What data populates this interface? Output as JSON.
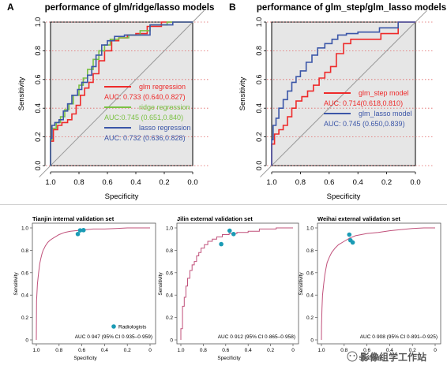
{
  "chart_data": [
    {
      "type": "line",
      "panel_letter": "A",
      "title": "performance of glm/ridge/lasso models",
      "xlabel": "Specificity",
      "ylabel": "Sensitivity",
      "xlim": [
        1.0,
        0.0
      ],
      "ylim": [
        0.0,
        1.0
      ],
      "x_reversed": true,
      "xticks": [
        "1.0",
        "0.8",
        "0.6",
        "0.4",
        "0.2",
        "0.0"
      ],
      "yticks": [
        "0.0",
        "0.2",
        "0.4",
        "0.6",
        "0.8",
        "1.0"
      ],
      "background": "#e6e6e6",
      "grid": "dotted red horizontal at y ticks",
      "legend_position": "inside-right",
      "series": [
        {
          "name": "glm regression",
          "auc_text": "AUC: 0.733 (0.640,0.827)",
          "color": "#ee2a2a",
          "x": [
            1.0,
            1.0,
            0.98,
            0.98,
            0.95,
            0.95,
            0.92,
            0.92,
            0.88,
            0.88,
            0.85,
            0.85,
            0.82,
            0.82,
            0.79,
            0.79,
            0.76,
            0.76,
            0.73,
            0.73,
            0.7,
            0.7,
            0.66,
            0.66,
            0.62,
            0.62,
            0.57,
            0.57,
            0.52,
            0.52,
            0.46,
            0.46,
            0.4,
            0.4,
            0.32,
            0.32,
            0.22,
            0.22,
            0.0
          ],
          "y": [
            0.0,
            0.17,
            0.17,
            0.25,
            0.25,
            0.28,
            0.28,
            0.3,
            0.3,
            0.32,
            0.32,
            0.36,
            0.36,
            0.42,
            0.42,
            0.49,
            0.49,
            0.54,
            0.54,
            0.58,
            0.58,
            0.64,
            0.64,
            0.73,
            0.73,
            0.8,
            0.8,
            0.87,
            0.87,
            0.89,
            0.89,
            0.91,
            0.91,
            0.92,
            0.92,
            0.97,
            0.97,
            1.0,
            1.0
          ]
        },
        {
          "name": "ridge regression",
          "auc_text": "AUC:0.745 (0.651,0.840)",
          "color": "#7ac143",
          "x": [
            1.0,
            1.0,
            0.99,
            0.99,
            0.96,
            0.96,
            0.93,
            0.93,
            0.9,
            0.9,
            0.87,
            0.87,
            0.84,
            0.84,
            0.8,
            0.8,
            0.77,
            0.77,
            0.74,
            0.74,
            0.7,
            0.7,
            0.66,
            0.66,
            0.62,
            0.62,
            0.58,
            0.58,
            0.52,
            0.52,
            0.45,
            0.45,
            0.37,
            0.37,
            0.3,
            0.3,
            0.18,
            0.18,
            0.0
          ],
          "y": [
            0.0,
            0.18,
            0.18,
            0.26,
            0.26,
            0.3,
            0.3,
            0.34,
            0.34,
            0.39,
            0.39,
            0.43,
            0.43,
            0.49,
            0.49,
            0.56,
            0.56,
            0.61,
            0.61,
            0.67,
            0.67,
            0.74,
            0.74,
            0.8,
            0.8,
            0.84,
            0.84,
            0.88,
            0.88,
            0.89,
            0.89,
            0.91,
            0.91,
            0.94,
            0.94,
            0.98,
            0.98,
            1.0,
            1.0
          ]
        },
        {
          "name": "lasso regression",
          "auc_text": "AUC: 0.732 (0.636,0.828)",
          "color": "#3b56a8",
          "x": [
            1.0,
            1.0,
            0.99,
            0.99,
            0.97,
            0.97,
            0.94,
            0.94,
            0.91,
            0.91,
            0.88,
            0.88,
            0.85,
            0.85,
            0.81,
            0.81,
            0.78,
            0.78,
            0.74,
            0.74,
            0.71,
            0.71,
            0.68,
            0.68,
            0.64,
            0.64,
            0.6,
            0.6,
            0.55,
            0.55,
            0.48,
            0.48,
            0.4,
            0.4,
            0.3,
            0.3,
            0.14,
            0.14,
            0.0
          ],
          "y": [
            0.0,
            0.19,
            0.19,
            0.28,
            0.28,
            0.3,
            0.3,
            0.32,
            0.32,
            0.38,
            0.38,
            0.43,
            0.43,
            0.49,
            0.49,
            0.53,
            0.53,
            0.58,
            0.58,
            0.63,
            0.63,
            0.69,
            0.69,
            0.77,
            0.77,
            0.84,
            0.84,
            0.87,
            0.87,
            0.9,
            0.9,
            0.91,
            0.91,
            0.91,
            0.91,
            0.98,
            0.98,
            1.0,
            1.0
          ]
        }
      ]
    },
    {
      "type": "line",
      "panel_letter": "B",
      "title": "performance of glm_step/glm_lasso models",
      "xlabel": "Specificity",
      "ylabel": "Sensitivity",
      "xlim": [
        1.0,
        0.0
      ],
      "ylim": [
        0.0,
        1.0
      ],
      "x_reversed": true,
      "xticks": [
        "1.0",
        "0.8",
        "0.6",
        "0.4",
        "0.2",
        "0.0"
      ],
      "yticks": [
        "0.0",
        "0.2",
        "0.4",
        "0.6",
        "0.8",
        "1.0"
      ],
      "background": "#e6e6e6",
      "grid": "dotted red horizontal at y ticks",
      "legend_position": "inside-right",
      "series": [
        {
          "name": "glm_step model",
          "auc_text": "AUC: 0.714(0.618,0.810)",
          "color": "#ee2a2a",
          "x": [
            1.0,
            1.0,
            0.98,
            0.98,
            0.95,
            0.95,
            0.92,
            0.92,
            0.89,
            0.89,
            0.86,
            0.86,
            0.83,
            0.83,
            0.79,
            0.79,
            0.75,
            0.75,
            0.71,
            0.71,
            0.67,
            0.67,
            0.63,
            0.63,
            0.59,
            0.59,
            0.55,
            0.55,
            0.5,
            0.5,
            0.45,
            0.45,
            0.36,
            0.36,
            0.24,
            0.24,
            0.12,
            0.12,
            0.0
          ],
          "y": [
            0.0,
            0.15,
            0.15,
            0.22,
            0.22,
            0.25,
            0.25,
            0.28,
            0.28,
            0.34,
            0.34,
            0.4,
            0.4,
            0.45,
            0.45,
            0.48,
            0.48,
            0.52,
            0.52,
            0.56,
            0.56,
            0.61,
            0.61,
            0.65,
            0.65,
            0.69,
            0.69,
            0.78,
            0.78,
            0.85,
            0.85,
            0.88,
            0.88,
            0.88,
            0.88,
            0.92,
            0.92,
            1.0,
            1.0
          ]
        },
        {
          "name": "glm_lasso model",
          "auc_text": "AUC: 0.745 (0.650,0.839)",
          "color": "#3b56a8",
          "x": [
            1.0,
            1.0,
            0.99,
            0.99,
            0.97,
            0.97,
            0.95,
            0.95,
            0.92,
            0.92,
            0.89,
            0.89,
            0.86,
            0.86,
            0.83,
            0.83,
            0.8,
            0.8,
            0.76,
            0.76,
            0.72,
            0.72,
            0.68,
            0.68,
            0.63,
            0.63,
            0.58,
            0.58,
            0.54,
            0.54,
            0.48,
            0.48,
            0.4,
            0.4,
            0.25,
            0.25,
            0.12,
            0.12,
            0.0
          ],
          "y": [
            0.0,
            0.18,
            0.18,
            0.28,
            0.28,
            0.33,
            0.33,
            0.4,
            0.4,
            0.46,
            0.46,
            0.52,
            0.52,
            0.58,
            0.58,
            0.62,
            0.62,
            0.66,
            0.66,
            0.72,
            0.72,
            0.77,
            0.77,
            0.82,
            0.82,
            0.85,
            0.85,
            0.88,
            0.88,
            0.91,
            0.91,
            0.92,
            0.92,
            0.93,
            0.93,
            0.96,
            0.96,
            1.0,
            1.0
          ]
        }
      ]
    },
    {
      "type": "line",
      "title": "Tianjin internal validation set",
      "xlabel": "Specificity",
      "ylabel": "Sensitivity",
      "xlim": [
        1.0,
        0.0
      ],
      "ylim": [
        0.0,
        1.0
      ],
      "x_reversed": true,
      "xticks": [
        "1.0",
        "0.8",
        "0.6",
        "0.4",
        "0.2",
        "0"
      ],
      "yticks": [
        "0",
        "0.2",
        "0.4",
        "0.6",
        "0.8",
        "1.0"
      ],
      "auc_text": "AUC 0·947 (95% CI 0·935–0·959)",
      "legend_label": "Radiologists",
      "legend_position": "bottom-right",
      "color": "#c0507a",
      "point_color": "#1a9bb5",
      "series": [
        {
          "x": [
            1.0,
            0.998,
            0.99,
            0.98,
            0.97,
            0.96,
            0.95,
            0.94,
            0.93,
            0.92,
            0.9,
            0.88,
            0.85,
            0.8,
            0.75,
            0.7,
            0.6,
            0.5,
            0.4,
            0.3,
            0.2,
            0.1,
            0.0
          ],
          "y": [
            0.0,
            0.35,
            0.5,
            0.6,
            0.68,
            0.73,
            0.77,
            0.8,
            0.82,
            0.84,
            0.87,
            0.89,
            0.91,
            0.94,
            0.96,
            0.97,
            0.98,
            0.99,
            0.99,
            0.995,
            1.0,
            1.0,
            1.0
          ]
        }
      ],
      "points": [
        {
          "x": 0.635,
          "y": 0.945
        },
        {
          "x": 0.615,
          "y": 0.978
        },
        {
          "x": 0.585,
          "y": 0.98
        }
      ]
    },
    {
      "type": "line",
      "title": "Jilin external validation set",
      "xlabel": "Specificity",
      "ylabel": "Sensitivity",
      "xlim": [
        1.0,
        0.0
      ],
      "ylim": [
        0.0,
        1.0
      ],
      "x_reversed": true,
      "xticks": [
        "1.0",
        "0.8",
        "0.6",
        "0.4",
        "0.2",
        "0"
      ],
      "yticks": [
        "0",
        "0.2",
        "0.4",
        "0.6",
        "0.8",
        "1.0"
      ],
      "auc_text": "AUC 0·912 (95% CI 0·865–0·958)",
      "color": "#c0507a",
      "point_color": "#1a9bb5",
      "series": [
        {
          "x": [
            1.0,
            1.0,
            0.985,
            0.985,
            0.97,
            0.97,
            0.955,
            0.955,
            0.94,
            0.94,
            0.92,
            0.92,
            0.9,
            0.9,
            0.88,
            0.88,
            0.86,
            0.86,
            0.84,
            0.84,
            0.82,
            0.82,
            0.79,
            0.79,
            0.76,
            0.76,
            0.72,
            0.72,
            0.68,
            0.68,
            0.63,
            0.63,
            0.57,
            0.57,
            0.5,
            0.5,
            0.4,
            0.4,
            0.3,
            0.3,
            0.15,
            0.15,
            0.0
          ],
          "y": [
            0.0,
            0.1,
            0.1,
            0.3,
            0.3,
            0.38,
            0.38,
            0.48,
            0.48,
            0.55,
            0.55,
            0.62,
            0.62,
            0.67,
            0.67,
            0.7,
            0.7,
            0.75,
            0.75,
            0.78,
            0.78,
            0.82,
            0.82,
            0.85,
            0.85,
            0.88,
            0.88,
            0.9,
            0.9,
            0.92,
            0.92,
            0.94,
            0.94,
            0.95,
            0.95,
            0.96,
            0.96,
            0.97,
            0.97,
            0.99,
            0.99,
            1.0,
            1.0
          ]
        }
      ],
      "points": [
        {
          "x": 0.64,
          "y": 0.855
        },
        {
          "x": 0.565,
          "y": 0.975
        },
        {
          "x": 0.53,
          "y": 0.945
        }
      ]
    },
    {
      "type": "line",
      "title": "Weihai external validation set",
      "xlabel": "Specificity",
      "ylabel": "Sensitivity",
      "xlim": [
        1.0,
        0.0
      ],
      "ylim": [
        0.0,
        1.0
      ],
      "x_reversed": true,
      "xticks": [
        "1.0",
        "0.8",
        "0.6",
        "0.4",
        "0.2",
        "0"
      ],
      "yticks": [
        "0",
        "0.2",
        "0.4",
        "0.6",
        "0.8",
        "1.0"
      ],
      "auc_text": "AUC 0·908 (95% CI 0·891–0·925)",
      "color": "#c0507a",
      "point_color": "#1a9bb5",
      "series": [
        {
          "x": [
            1.0,
            0.999,
            0.995,
            0.99,
            0.98,
            0.97,
            0.96,
            0.95,
            0.93,
            0.91,
            0.88,
            0.85,
            0.8,
            0.75,
            0.7,
            0.6,
            0.5,
            0.4,
            0.3,
            0.2,
            0.1,
            0.0
          ],
          "y": [
            0.0,
            0.12,
            0.28,
            0.4,
            0.5,
            0.58,
            0.64,
            0.69,
            0.74,
            0.78,
            0.82,
            0.85,
            0.88,
            0.91,
            0.93,
            0.95,
            0.96,
            0.975,
            0.985,
            0.995,
            1.0,
            1.0
          ]
        }
      ],
      "points": [
        {
          "x": 0.755,
          "y": 0.94
        },
        {
          "x": 0.745,
          "y": 0.89
        },
        {
          "x": 0.725,
          "y": 0.87
        }
      ]
    }
  ],
  "watermark": "影像组学工作站"
}
